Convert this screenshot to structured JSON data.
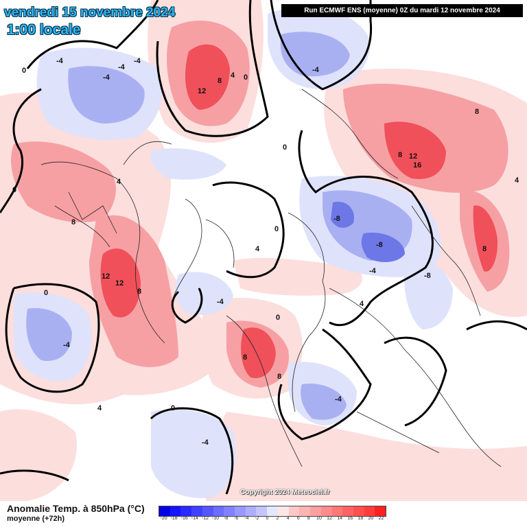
{
  "title": {
    "date": "vendredi 15 novembre 2024",
    "time": "1:00 locale"
  },
  "run_info": "Run ECMWF ENS (moyenne) 0Z du mardi 12 novembre 2024",
  "copyright": "Copyright 2024 Meteociel.fr",
  "footer": {
    "title": "Anomalie Temp. à 850hPa (°C)",
    "subtitle": "moyenne  (+72h)"
  },
  "colors": {
    "warm_strong": "#f0505a",
    "warm_mid": "#f6a0a4",
    "warm_light": "#fcdedd",
    "cold_strong": "#6d78e6",
    "cold_mid": "#a9b0f2",
    "cold_light": "#dfe2fb",
    "contour": "#000000"
  },
  "legend_scale": {
    "ticks": [
      "-20",
      "-18",
      "-16",
      "-14",
      "-12",
      "-10",
      "-8",
      "-6",
      "-4",
      "-2",
      "0",
      "2",
      "4",
      "6",
      "8",
      "10",
      "12",
      "14",
      "16",
      "18",
      "20",
      "22"
    ],
    "colors": [
      "#0000e0",
      "#1414ff",
      "#2a2aff",
      "#4040ff",
      "#5656ff",
      "#6c6cff",
      "#8282ff",
      "#9898ff",
      "#aeaeff",
      "#c4c4ff",
      "#e6e6ff",
      "#ffe6e6",
      "#ffc8c8",
      "#ffb4b4",
      "#ffa0a0",
      "#ff8c8c",
      "#ff7878",
      "#ff6464",
      "#ff5050",
      "#ff3c3c",
      "#ff2020"
    ]
  },
  "contour_labels": [
    {
      "text": "-4"
    },
    {
      "text": "-4"
    },
    {
      "text": "-4"
    },
    {
      "text": "-4"
    },
    {
      "text": "12"
    },
    {
      "text": "8"
    },
    {
      "text": "4"
    },
    {
      "text": "0"
    },
    {
      "text": "-4"
    },
    {
      "text": "0"
    },
    {
      "text": "12"
    },
    {
      "text": "16"
    },
    {
      "text": "8"
    },
    {
      "text": "8"
    },
    {
      "text": "8"
    },
    {
      "text": "4"
    },
    {
      "text": "0"
    },
    {
      "text": "-8"
    },
    {
      "text": "-8"
    },
    {
      "text": "-4"
    },
    {
      "text": "12"
    },
    {
      "text": "12"
    },
    {
      "text": "8"
    },
    {
      "text": "8"
    },
    {
      "text": "4"
    },
    {
      "text": "0"
    },
    {
      "text": "-4"
    },
    {
      "text": "-4"
    },
    {
      "text": "8"
    },
    {
      "text": "8"
    },
    {
      "text": "4"
    },
    {
      "text": "0"
    },
    {
      "text": "4"
    },
    {
      "text": "0"
    },
    {
      "text": "-4"
    },
    {
      "text": "-8"
    },
    {
      "text": "4"
    },
    {
      "text": "-4"
    },
    {
      "text": "0"
    },
    {
      "text": "0"
    }
  ]
}
